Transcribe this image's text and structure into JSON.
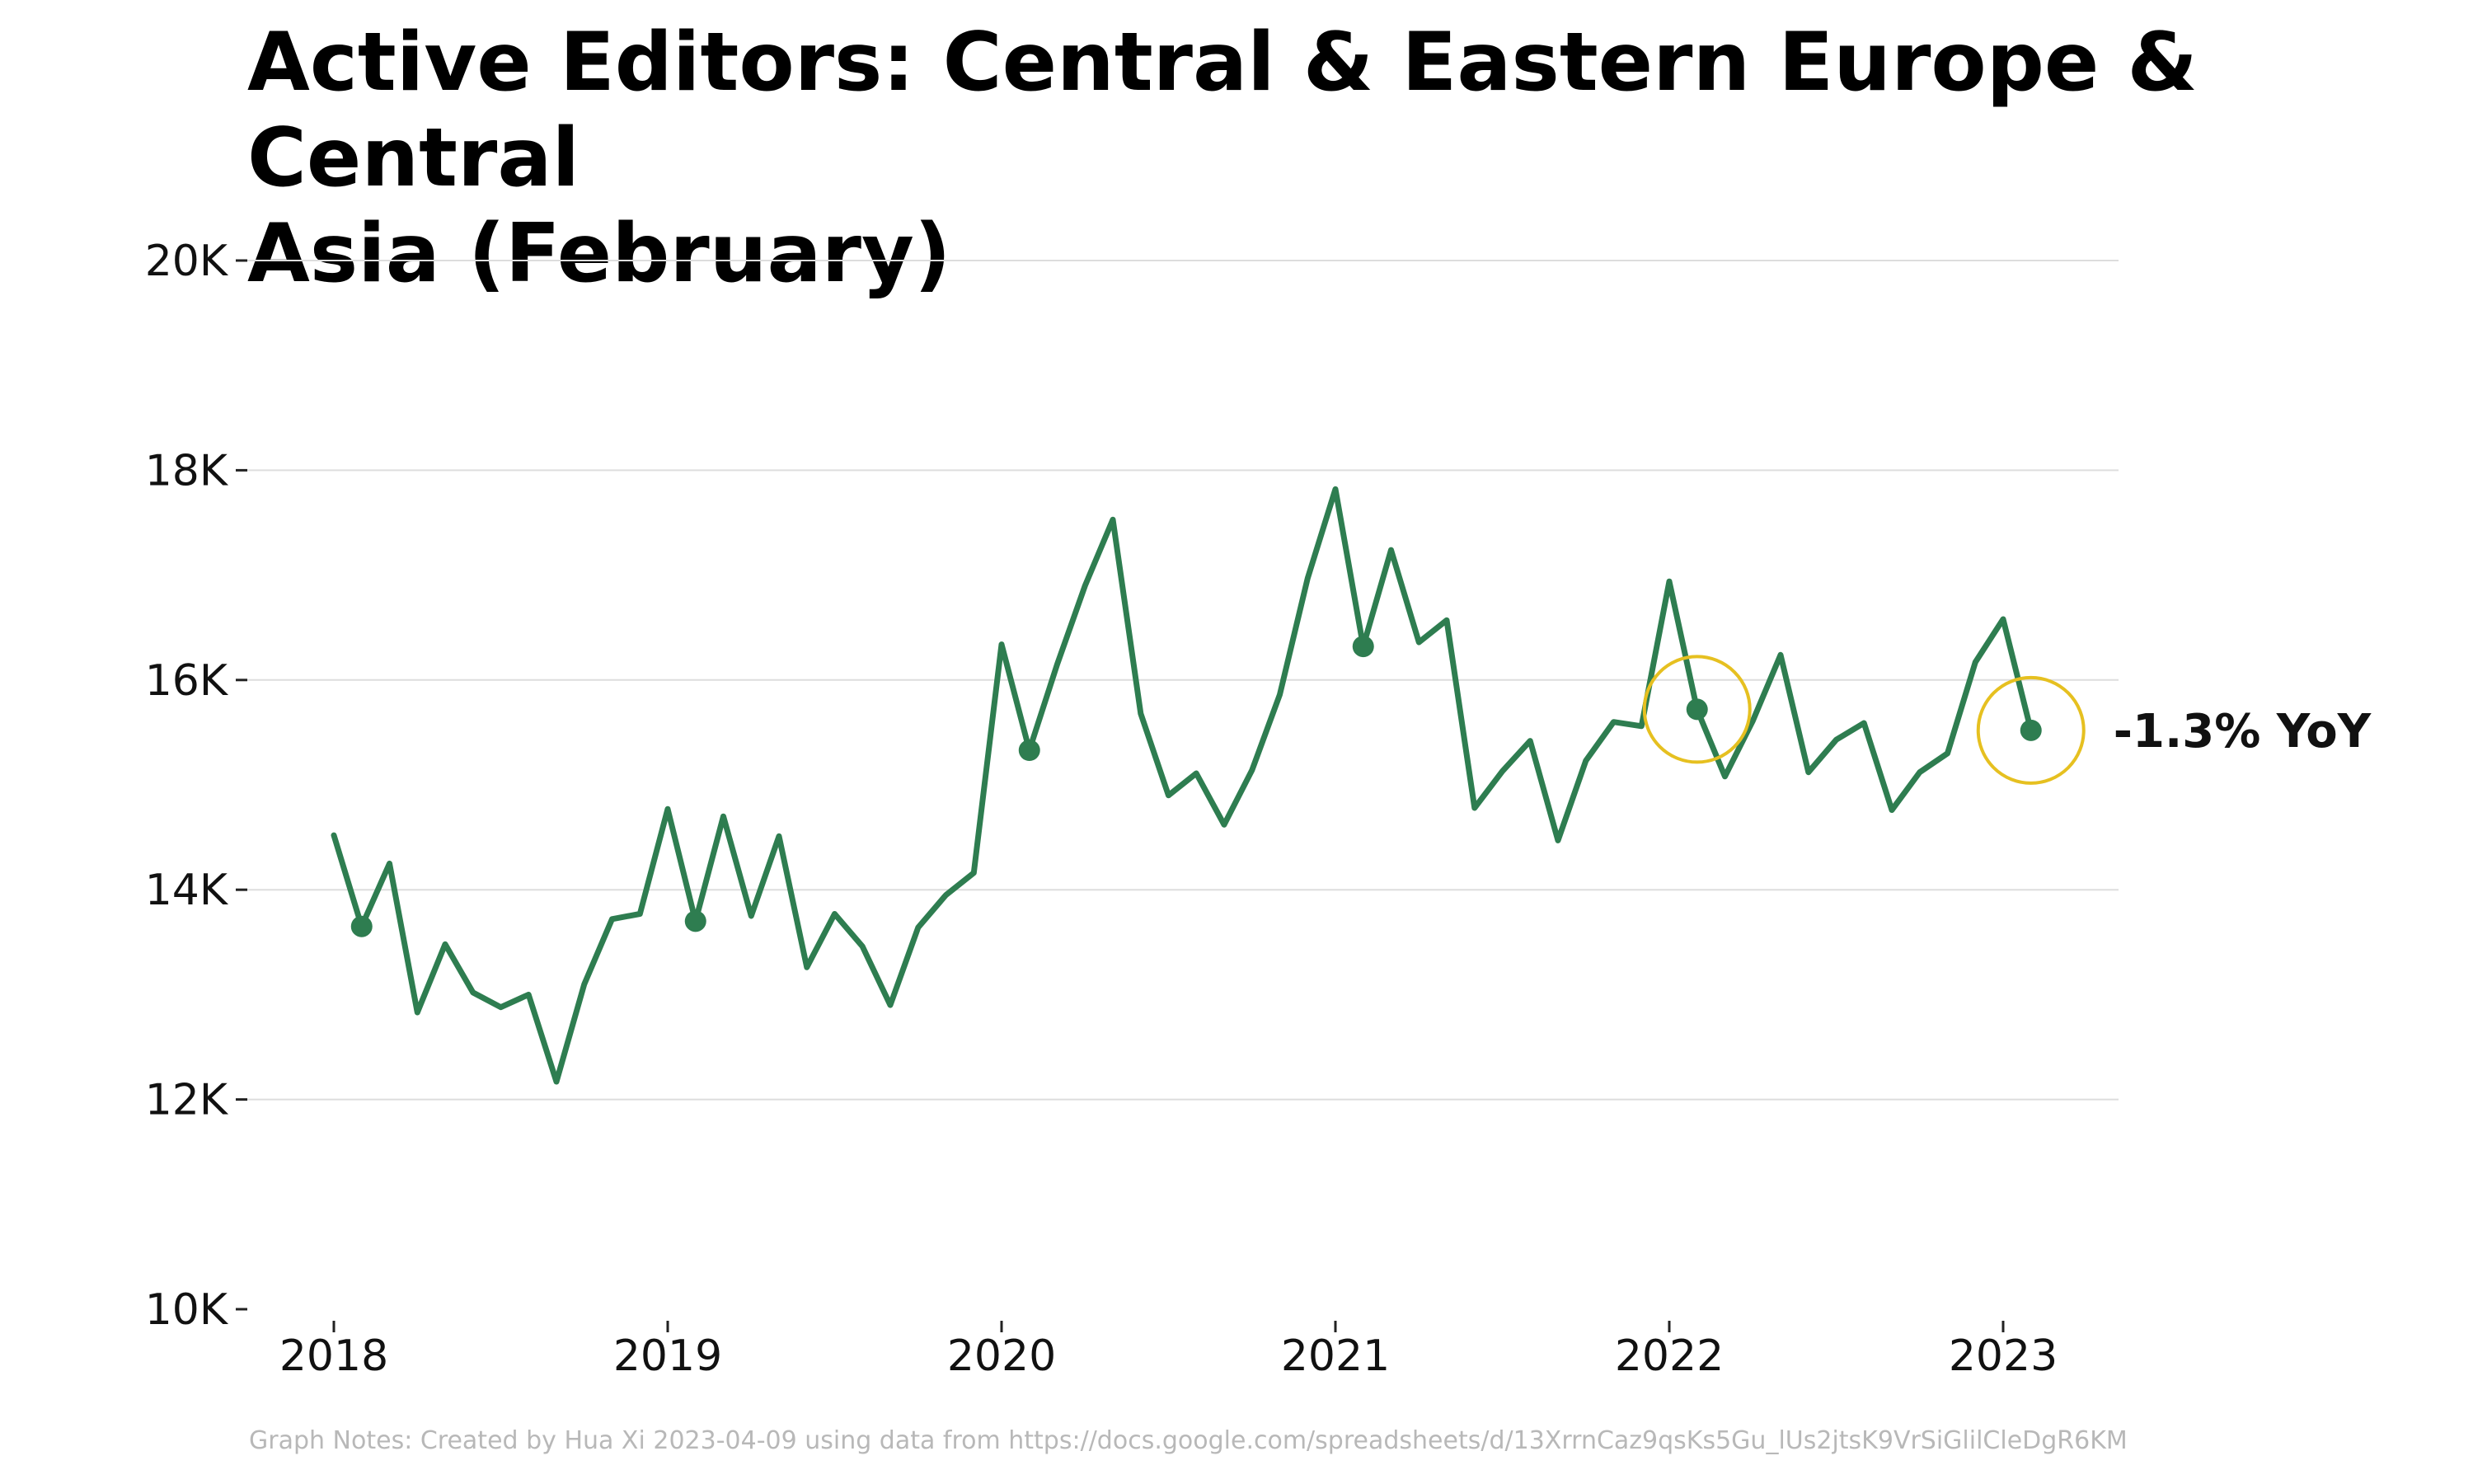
{
  "title_lines": [
    "Active Editors: Central & Eastern Europe & Central",
    "Asia (February)"
  ],
  "footnote": "Graph Notes: Created by Hua Xi 2023-04-09 using data from https://docs.google.com/spreadsheets/d/13XrrnCaz9qsKs5Gu_lUs2jtsK9VrSiGlilCleDgR6KM",
  "colors": {
    "line": "#2e7d50",
    "highlight_circle": "#e6c020",
    "grid": "#dddddd",
    "annotation": "#111111"
  },
  "chart_data": {
    "type": "line",
    "title": "Active Editors: Central & Eastern Europe & Central Asia (February)",
    "xlabel": "",
    "ylabel": "",
    "ylim": [
      10000,
      20000
    ],
    "y_ticks": [
      10000,
      12000,
      14000,
      16000,
      18000,
      20000
    ],
    "y_tick_labels": [
      "10K",
      "12K",
      "14K",
      "16K",
      "18K",
      "20K"
    ],
    "x_ticks": [
      2018,
      2019,
      2020,
      2021,
      2022,
      2023
    ],
    "x_tick_labels": [
      "2018",
      "2019",
      "2020",
      "2021",
      "2022",
      "2023"
    ],
    "grid": true,
    "series": [
      {
        "values": [
          {
            "x": "2018-01",
            "y": 14520
          },
          {
            "x": "2018-02",
            "y": 13650
          },
          {
            "x": "2018-03",
            "y": 14250
          },
          {
            "x": "2018-04",
            "y": 12830
          },
          {
            "x": "2018-05",
            "y": 13480
          },
          {
            "x": "2018-06",
            "y": 13020
          },
          {
            "x": "2018-07",
            "y": 12880
          },
          {
            "x": "2018-08",
            "y": 13000
          },
          {
            "x": "2018-09",
            "y": 12170
          },
          {
            "x": "2018-10",
            "y": 13100
          },
          {
            "x": "2018-11",
            "y": 13720
          },
          {
            "x": "2018-12",
            "y": 13770
          },
          {
            "x": "2019-01",
            "y": 14770
          },
          {
            "x": "2019-02",
            "y": 13700
          },
          {
            "x": "2019-03",
            "y": 14700
          },
          {
            "x": "2019-04",
            "y": 13750
          },
          {
            "x": "2019-05",
            "y": 14510
          },
          {
            "x": "2019-06",
            "y": 13260
          },
          {
            "x": "2019-07",
            "y": 13770
          },
          {
            "x": "2019-08",
            "y": 13460
          },
          {
            "x": "2019-09",
            "y": 12900
          },
          {
            "x": "2019-10",
            "y": 13640
          },
          {
            "x": "2019-11",
            "y": 13950
          },
          {
            "x": "2019-12",
            "y": 14160
          },
          {
            "x": "2020-01",
            "y": 16340
          },
          {
            "x": "2020-02",
            "y": 15330
          },
          {
            "x": "2020-03",
            "y": 16150
          },
          {
            "x": "2020-04",
            "y": 16900
          },
          {
            "x": "2020-05",
            "y": 17530
          },
          {
            "x": "2020-06",
            "y": 15680
          },
          {
            "x": "2020-07",
            "y": 14900
          },
          {
            "x": "2020-08",
            "y": 15110
          },
          {
            "x": "2020-09",
            "y": 14620
          },
          {
            "x": "2020-10",
            "y": 15140
          },
          {
            "x": "2020-11",
            "y": 15860
          },
          {
            "x": "2020-12",
            "y": 16970
          },
          {
            "x": "2021-01",
            "y": 17820
          },
          {
            "x": "2021-02",
            "y": 16320
          },
          {
            "x": "2021-03",
            "y": 17240
          },
          {
            "x": "2021-04",
            "y": 16360
          },
          {
            "x": "2021-05",
            "y": 16570
          },
          {
            "x": "2021-06",
            "y": 14780
          },
          {
            "x": "2021-07",
            "y": 15130
          },
          {
            "x": "2021-08",
            "y": 15420
          },
          {
            "x": "2021-09",
            "y": 14470
          },
          {
            "x": "2021-10",
            "y": 15230
          },
          {
            "x": "2021-11",
            "y": 15600
          },
          {
            "x": "2021-12",
            "y": 15560
          },
          {
            "x": "2022-01",
            "y": 16940
          },
          {
            "x": "2022-02",
            "y": 15720
          },
          {
            "x": "2022-03",
            "y": 15080
          },
          {
            "x": "2022-04",
            "y": 15610
          },
          {
            "x": "2022-05",
            "y": 16240
          },
          {
            "x": "2022-06",
            "y": 15120
          },
          {
            "x": "2022-07",
            "y": 15430
          },
          {
            "x": "2022-08",
            "y": 15590
          },
          {
            "x": "2022-09",
            "y": 14760
          },
          {
            "x": "2022-10",
            "y": 15120
          },
          {
            "x": "2022-11",
            "y": 15300
          },
          {
            "x": "2022-12",
            "y": 16170
          },
          {
            "x": "2023-01",
            "y": 16580
          },
          {
            "x": "2023-02",
            "y": 15520
          }
        ]
      }
    ],
    "highlighted_points": [
      "2018-02",
      "2019-02",
      "2020-02",
      "2021-02",
      "2022-02",
      "2023-02"
    ],
    "circled_points": [
      "2022-02",
      "2023-02"
    ],
    "annotation": {
      "text": "-1.3% YoY",
      "anchor": "2023-02"
    }
  }
}
